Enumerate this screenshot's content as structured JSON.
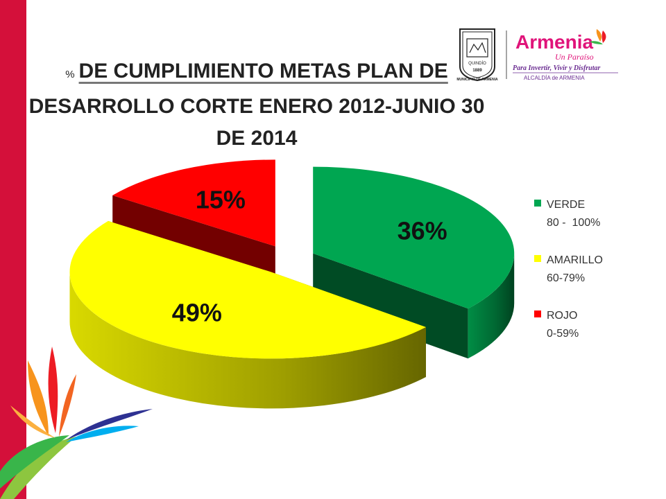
{
  "slide": {
    "title_prefix": "%",
    "title_line1": "DE CUMPLIMIENTO METAS PLAN DE",
    "title_line2": "DESARROLLO CORTE ENERO 2012-JUNIO 30",
    "title_line3": "DE 2014"
  },
  "logos": {
    "seal_text1": "QUINDÍO",
    "seal_text2": "1889",
    "seal_text3": "MUNICIPIO DE ARMENIA",
    "brand": "Armenia",
    "tagline": "Un Paraíso",
    "slogan": "Para Invertir, Vivir y Disfrutar",
    "org": "ALCALDÍA de ARMENIA"
  },
  "chart_data": {
    "type": "pie",
    "title": "% DE CUMPLIMIENTO METAS PLAN DE DESARROLLO CORTE ENERO 2012-JUNIO 30 DE 2014",
    "series": [
      {
        "name": "VERDE",
        "range": "80 -  100%",
        "value": 36,
        "label": "36%",
        "color": "#00a651"
      },
      {
        "name": "AMARILLO",
        "range": "60-79%",
        "value": 49,
        "label": "49%",
        "color": "#ffff00"
      },
      {
        "name": "ROJO",
        "range": "0-59%",
        "value": 15,
        "label": "15%",
        "color": "#ff0000"
      }
    ],
    "legend_position": "right",
    "exploded": true,
    "style": "3d"
  }
}
